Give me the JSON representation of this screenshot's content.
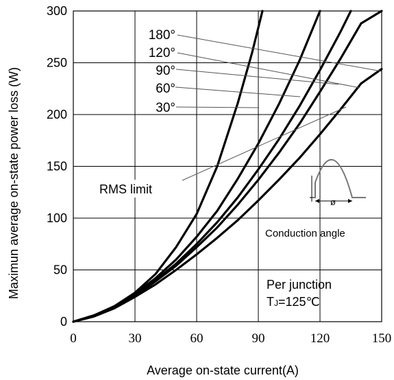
{
  "chart_data": {
    "type": "line",
    "title": "",
    "xlabel": "Average on-state current(A)",
    "ylabel": "Maximun average on-state power loss (W)",
    "xlim": [
      0,
      150
    ],
    "ylim": [
      0,
      300
    ],
    "x_ticks": [
      "0",
      "30",
      "60",
      "90",
      "120",
      "150"
    ],
    "y_ticks": [
      "0",
      "50",
      "100",
      "150",
      "200",
      "250",
      "300"
    ],
    "grid": true,
    "series": [
      {
        "name": "30°",
        "points": [
          [
            0,
            0
          ],
          [
            10,
            6
          ],
          [
            20,
            15
          ],
          [
            30,
            28
          ],
          [
            40,
            46
          ],
          [
            50,
            72
          ],
          [
            60,
            104
          ],
          [
            70,
            150
          ],
          [
            80,
            211
          ],
          [
            87,
            260
          ],
          [
            92,
            300
          ]
        ]
      },
      {
        "name": "60°",
        "points": [
          [
            0,
            0
          ],
          [
            10,
            6
          ],
          [
            20,
            15
          ],
          [
            30,
            27
          ],
          [
            40,
            42
          ],
          [
            50,
            60
          ],
          [
            60,
            82
          ],
          [
            70,
            107
          ],
          [
            80,
            138
          ],
          [
            90,
            172
          ],
          [
            100,
            210
          ],
          [
            110,
            252
          ],
          [
            120,
            300
          ]
        ]
      },
      {
        "name": "90°",
        "points": [
          [
            0,
            0
          ],
          [
            10,
            6
          ],
          [
            20,
            14
          ],
          [
            30,
            26
          ],
          [
            40,
            40
          ],
          [
            50,
            56
          ],
          [
            60,
            75
          ],
          [
            70,
            96
          ],
          [
            80,
            120
          ],
          [
            90,
            147
          ],
          [
            100,
            176
          ],
          [
            110,
            208
          ],
          [
            120,
            243
          ],
          [
            130,
            280
          ],
          [
            135,
            300
          ]
        ]
      },
      {
        "name": "120°",
        "points": [
          [
            0,
            0
          ],
          [
            10,
            6
          ],
          [
            20,
            14
          ],
          [
            30,
            25
          ],
          [
            40,
            39
          ],
          [
            50,
            54
          ],
          [
            60,
            72
          ],
          [
            70,
            91
          ],
          [
            80,
            113
          ],
          [
            90,
            137
          ],
          [
            100,
            163
          ],
          [
            110,
            191
          ],
          [
            120,
            222
          ],
          [
            130,
            254
          ],
          [
            140,
            288
          ],
          [
            150,
            300
          ]
        ]
      },
      {
        "name": "180°",
        "points": [
          [
            0,
            0
          ],
          [
            10,
            5
          ],
          [
            20,
            13
          ],
          [
            30,
            24
          ],
          [
            40,
            36
          ],
          [
            50,
            50
          ],
          [
            60,
            65
          ],
          [
            70,
            81
          ],
          [
            80,
            98
          ],
          [
            90,
            117
          ],
          [
            100,
            137
          ],
          [
            110,
            158
          ],
          [
            120,
            181
          ],
          [
            130,
            205
          ],
          [
            140,
            230
          ],
          [
            150,
            244
          ]
        ]
      }
    ],
    "legend_labels": [
      "180°",
      "120°",
      "90°",
      "60°",
      "30°"
    ],
    "annotations": {
      "rms_limit": "RMS limit",
      "conduction_angle": "Conduction angle",
      "phi_symbol": "ø",
      "per_junction": "Per junction",
      "tj_prefix": "T",
      "tj_sub": "J",
      "tj_value": "=125℃"
    },
    "colors": {
      "line": "#000000",
      "grid": "#000000",
      "leader": "#555555",
      "pulse": "#777777"
    }
  }
}
